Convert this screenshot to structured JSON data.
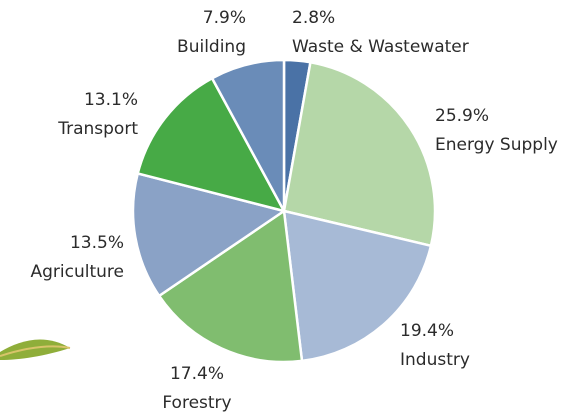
{
  "chart_data": {
    "type": "pie",
    "categories": [
      "Waste & Wastewater",
      "Energy Supply",
      "Industry",
      "Forestry",
      "Agriculture",
      "Transport",
      "Building"
    ],
    "values": [
      2.8,
      25.9,
      19.4,
      17.4,
      13.5,
      13.1,
      7.9
    ],
    "value_labels": [
      "2.8%",
      "25.9%",
      "19.4%",
      "17.4%",
      "13.5%",
      "13.1%",
      "7.9%"
    ],
    "colors": [
      "#4a72a6",
      "#b5d7a8",
      "#a7bad6",
      "#80bd6f",
      "#8aa2c6",
      "#47aa46",
      "#6a8cb8"
    ]
  }
}
